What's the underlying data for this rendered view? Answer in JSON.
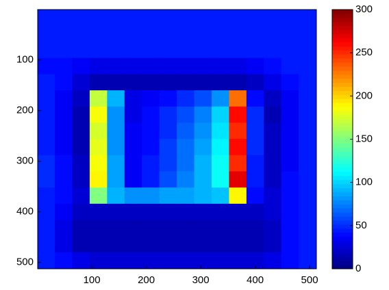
{
  "chart_data": {
    "type": "heatmap",
    "colormap": "jet",
    "x": [
      16,
      48,
      80,
      112,
      144,
      176,
      208,
      240,
      272,
      304,
      336,
      368,
      400,
      432,
      464,
      496
    ],
    "y": [
      16,
      48,
      80,
      112,
      144,
      176,
      208,
      240,
      272,
      304,
      336,
      368,
      400,
      432,
      464,
      496
    ],
    "z": [
      [
        45,
        45,
        45,
        45,
        45,
        45,
        45,
        45,
        45,
        45,
        45,
        45,
        45,
        45,
        45,
        45
      ],
      [
        45,
        45,
        45,
        45,
        45,
        45,
        45,
        45,
        45,
        45,
        45,
        45,
        45,
        45,
        45,
        45
      ],
      [
        45,
        45,
        45,
        45,
        45,
        45,
        45,
        45,
        45,
        45,
        45,
        45,
        45,
        45,
        45,
        45
      ],
      [
        40,
        40,
        35,
        30,
        30,
        30,
        30,
        30,
        30,
        30,
        30,
        30,
        35,
        40,
        45,
        45
      ],
      [
        45,
        40,
        25,
        15,
        15,
        15,
        15,
        15,
        15,
        15,
        15,
        15,
        20,
        30,
        40,
        45
      ],
      [
        45,
        35,
        20,
        170,
        90,
        30,
        35,
        40,
        50,
        60,
        80,
        230,
        40,
        20,
        35,
        45
      ],
      [
        45,
        35,
        15,
        185,
        80,
        30,
        40,
        50,
        60,
        75,
        100,
        260,
        50,
        15,
        35,
        45
      ],
      [
        45,
        35,
        15,
        175,
        80,
        35,
        40,
        50,
        65,
        80,
        105,
        250,
        50,
        20,
        35,
        45
      ],
      [
        45,
        35,
        15,
        180,
        80,
        35,
        40,
        55,
        70,
        85,
        110,
        260,
        50,
        20,
        35,
        45
      ],
      [
        50,
        40,
        20,
        185,
        85,
        35,
        45,
        55,
        70,
        90,
        115,
        250,
        45,
        20,
        35,
        45
      ],
      [
        50,
        40,
        20,
        190,
        85,
        35,
        45,
        60,
        75,
        90,
        115,
        270,
        45,
        20,
        40,
        45
      ],
      [
        45,
        40,
        25,
        150,
        90,
        80,
        80,
        85,
        85,
        90,
        95,
        190,
        40,
        25,
        40,
        45
      ],
      [
        45,
        35,
        20,
        20,
        20,
        20,
        20,
        20,
        20,
        20,
        20,
        20,
        20,
        25,
        40,
        45
      ],
      [
        45,
        30,
        15,
        15,
        15,
        15,
        15,
        15,
        15,
        15,
        15,
        15,
        15,
        20,
        40,
        45
      ],
      [
        45,
        30,
        15,
        15,
        15,
        15,
        15,
        15,
        15,
        15,
        15,
        15,
        15,
        20,
        40,
        45
      ],
      [
        45,
        40,
        30,
        25,
        25,
        25,
        25,
        25,
        25,
        25,
        25,
        25,
        25,
        30,
        40,
        45
      ]
    ],
    "xlim": [
      0.5,
      512.5
    ],
    "ylim": [
      0.5,
      512.5
    ],
    "y_reversed": true,
    "xticks": [
      100,
      200,
      300,
      400,
      500
    ],
    "yticks": [
      100,
      200,
      300,
      400,
      500
    ],
    "clim": [
      0,
      300
    ],
    "colorbar_ticks": [
      0,
      50,
      100,
      150,
      200,
      250,
      300
    ]
  }
}
